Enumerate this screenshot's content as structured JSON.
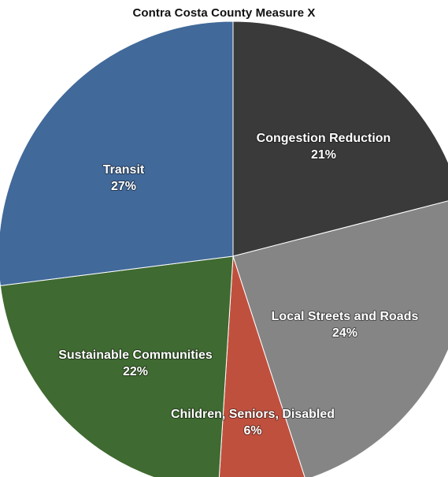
{
  "chart_data": {
    "type": "pie",
    "title": "Contra Costa County Measure X",
    "slices": [
      {
        "label": "Congestion Reduction",
        "value": 21,
        "value_label": "21%",
        "color": "#3a3a3a"
      },
      {
        "label": "Local Streets and Roads",
        "value": 24,
        "value_label": "24%",
        "color": "#858585"
      },
      {
        "label": "Children, Seniors, Disabled",
        "value": 6,
        "value_label": "6%",
        "color": "#c0503e"
      },
      {
        "label": "Sustainable Communities",
        "value": 22,
        "value_label": "22%",
        "color": "#3f6a31"
      },
      {
        "label": "Transit",
        "value": 27,
        "value_label": "27%",
        "color": "#41699a"
      }
    ],
    "start_angle_deg": 0,
    "direction": "clockwise",
    "legend": "none"
  }
}
